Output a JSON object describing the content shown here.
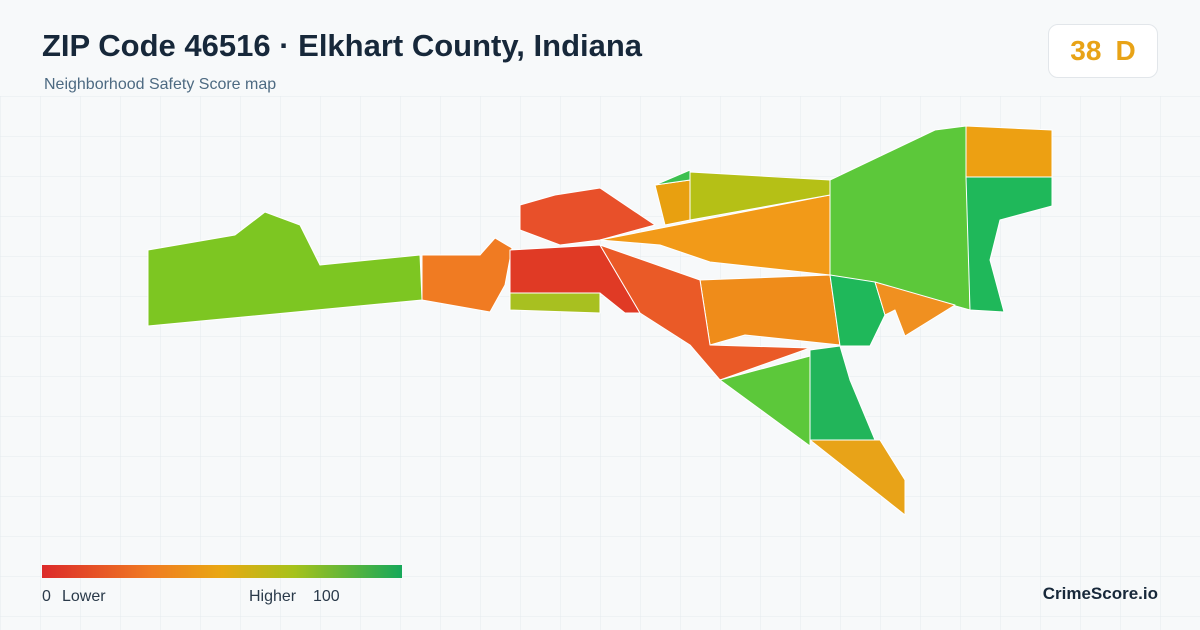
{
  "header": {
    "title": "ZIP Code 46516 · Elkhart County, Indiana",
    "subtitle": "Neighborhood Safety Score map"
  },
  "score": {
    "value": 38,
    "grade": "D"
  },
  "legend": {
    "min": 0,
    "min_label": "Lower",
    "max_label": "Higher",
    "max": 100
  },
  "brand": "CrimeScore.io"
}
